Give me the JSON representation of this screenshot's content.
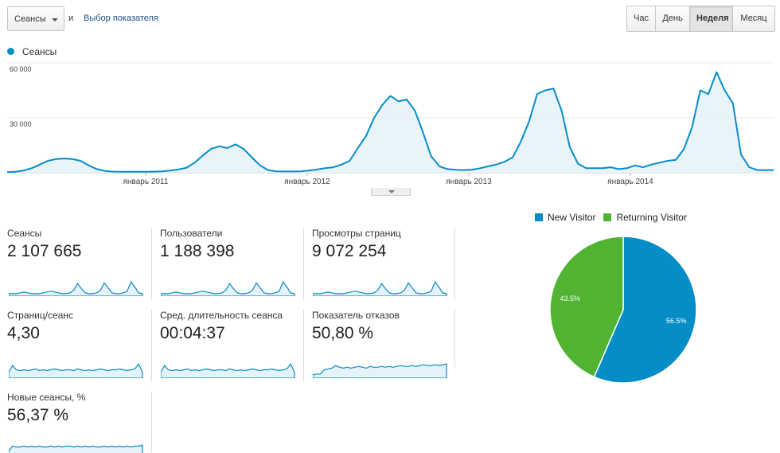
{
  "toolbar": {
    "metric_select": "Сеансы",
    "and_text": "и",
    "pick_metric_link": "Выбор показателя",
    "periods": [
      "Час",
      "День",
      "Неделя",
      "Месяц"
    ],
    "active_period": "Неделя"
  },
  "main_chart": {
    "legend_label": "Сеансы",
    "y_ticks": [
      "60 000",
      "30 000"
    ],
    "x_ticks": [
      "январь 2011",
      "январь 2012",
      "январь 2013",
      "январь 2014"
    ]
  },
  "cards": [
    {
      "label": "Сеансы",
      "value": "2 107 665"
    },
    {
      "label": "Пользователи",
      "value": "1 188 398"
    },
    {
      "label": "Просмотры страниц",
      "value": "9 072 254"
    },
    {
      "label": "Страниц/сеанс",
      "value": "4,30"
    },
    {
      "label": "Сред. длительность сеанса",
      "value": "00:04:37"
    },
    {
      "label": "Показатель отказов",
      "value": "50,80 %"
    },
    {
      "label": "Новые сеансы, %",
      "value": "56,37 %"
    }
  ],
  "pie": {
    "legend": [
      {
        "name": "New Visitor",
        "color": "#058dc7"
      },
      {
        "name": "Returning Visitor",
        "color": "#50b432"
      }
    ],
    "slices": [
      {
        "name": "New Visitor",
        "value": 56.5,
        "label": "56.5%",
        "color": "#058dc7"
      },
      {
        "name": "Returning Visitor",
        "value": 43.5,
        "label": "43.5%",
        "color": "#50b432"
      }
    ]
  },
  "chart_data": {
    "type": "area",
    "series": [
      {
        "name": "Сеансы",
        "x_range": [
          "2010-04",
          "2014-11"
        ],
        "values": [
          400,
          500,
          1200,
          2500,
          4500,
          6500,
          7500,
          7800,
          7500,
          6500,
          4000,
          2000,
          1000,
          600,
          500,
          500,
          500,
          500,
          600,
          800,
          1200,
          1800,
          2800,
          5500,
          9500,
          13000,
          14500,
          13500,
          15500,
          13000,
          8500,
          4000,
          1500,
          800,
          700,
          700,
          800,
          1200,
          1800,
          2500,
          3000,
          4500,
          6500,
          13500,
          20000,
          30000,
          37000,
          42000,
          39000,
          40000,
          34000,
          22000,
          9000,
          3500,
          2000,
          1600,
          1500,
          1700,
          2500,
          3500,
          4500,
          6000,
          8500,
          17000,
          28000,
          43000,
          45000,
          46000,
          34000,
          14000,
          5000,
          2500,
          2500,
          2500,
          3000,
          2000,
          2500,
          4000,
          3000,
          4500,
          5500,
          6500,
          7000,
          13000,
          25000,
          45000,
          43000,
          55000,
          45000,
          38000,
          10000,
          3000,
          1500,
          1500,
          1500
        ]
      }
    ],
    "y_ticks": [
      30000,
      60000
    ],
    "ylim": [
      0,
      60000
    ]
  }
}
